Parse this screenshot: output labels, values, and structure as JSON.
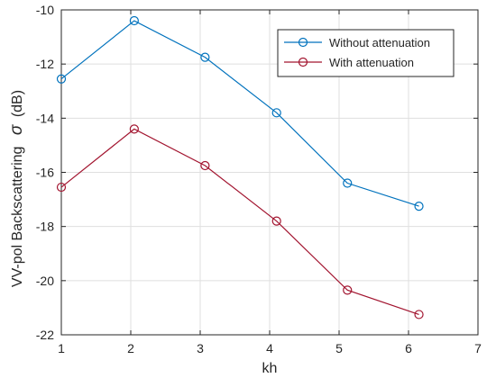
{
  "chart_data": {
    "type": "line",
    "x": [
      1.0,
      2.05,
      3.07,
      4.1,
      5.12,
      6.15
    ],
    "series": [
      {
        "name": "Without attenuation",
        "values": [
          -12.55,
          -10.4,
          -11.75,
          -13.8,
          -16.4,
          -17.25
        ],
        "color": "#0072BD"
      },
      {
        "name": "With attenuation",
        "values": [
          -16.55,
          -14.4,
          -15.75,
          -17.8,
          -20.35,
          -21.25
        ],
        "color": "#A2142F"
      }
    ],
    "xlabel": "kh",
    "ylabel_prefix": "VV-pol Backscattering",
    "ylabel_symbol": "σ",
    "ylabel_unit": "(dB)",
    "xlim": [
      1,
      7
    ],
    "ylim": [
      -22,
      -10
    ],
    "xticks": [
      1,
      2,
      3,
      4,
      5,
      6,
      7
    ],
    "yticks": [
      -22,
      -20,
      -18,
      -16,
      -14,
      -12,
      -10
    ],
    "grid": true,
    "legend_position": "top-right",
    "marker": "circle"
  }
}
